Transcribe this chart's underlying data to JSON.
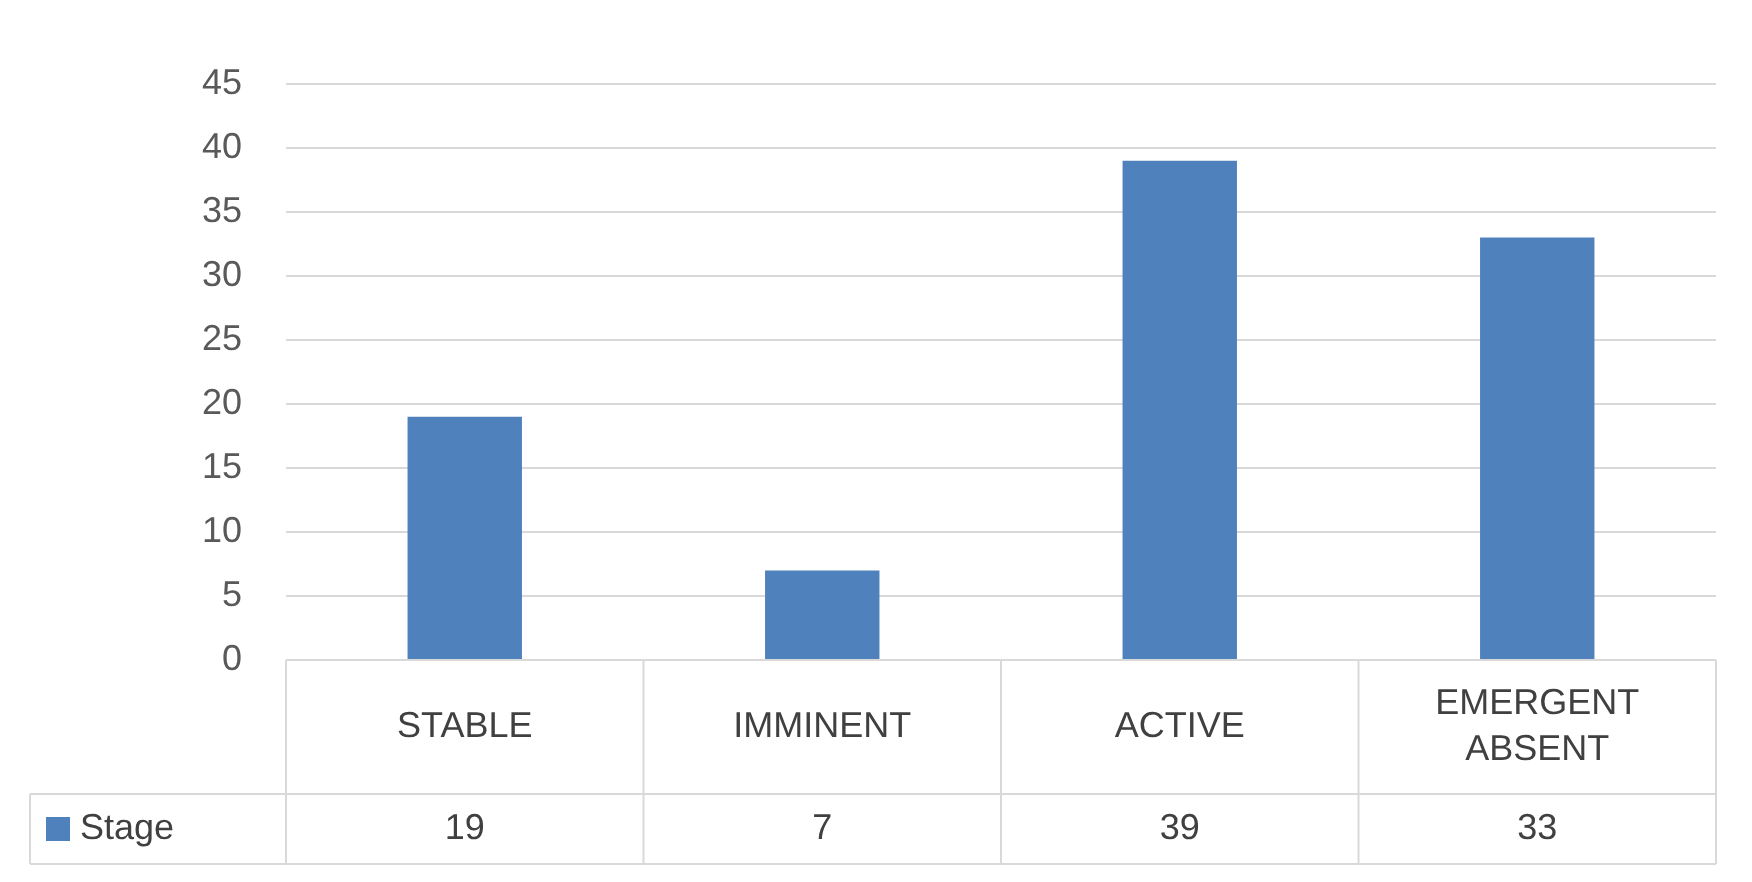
{
  "chart_data": {
    "type": "bar",
    "categories": [
      "STABLE",
      "IMMINENT",
      "ACTIVE",
      "EMERGENT ABSENT"
    ],
    "series": [
      {
        "name": "Stage",
        "color": "#4f81bd",
        "values": [
          19,
          7,
          39,
          33
        ]
      }
    ],
    "ylim": [
      0,
      45
    ],
    "yticks": [
      0,
      5,
      10,
      15,
      20,
      25,
      30,
      35,
      40,
      45
    ],
    "grid": "y",
    "legend": "bottom",
    "data_labels": true
  }
}
